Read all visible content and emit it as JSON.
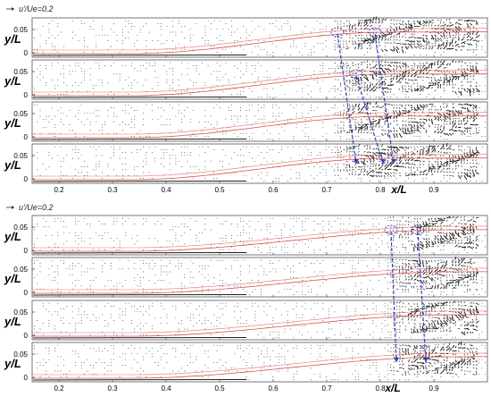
{
  "figure": {
    "groups": [
      {
        "legend": {
          "arrow": "->",
          "text": "u'/Ue=0.2"
        },
        "ylabel": "y/L",
        "xlabel": "x/L",
        "panels": 4,
        "yticks": [
          "0.05",
          "0"
        ],
        "xticks": [
          "0.2",
          "0.3",
          "0.4",
          "0.5",
          "0.6",
          "0.7",
          "0.8",
          "0.9"
        ]
      },
      {
        "legend": {
          "arrow": "->",
          "text": "u'/Ue=0.2"
        },
        "ylabel": "y/L",
        "xlabel": "x/L",
        "panels": 4,
        "yticks": [
          "0.05",
          "0"
        ],
        "xticks": [
          "0.2",
          "0.3",
          "0.4",
          "0.5",
          "0.6",
          "0.7",
          "0.8",
          "0.9"
        ]
      }
    ],
    "colors": {
      "vector": "#1a1a1a",
      "boundary_curve": "#d9534f",
      "tracking_arrow": "#2b3fd6",
      "frame": "#555555"
    }
  },
  "chart_data": {
    "type": "scatter",
    "title": "",
    "xlabel": "x/L",
    "ylabel": "y/L",
    "xlim": [
      0.15,
      1.0
    ],
    "ylim": [
      0,
      0.07
    ],
    "x_ticks": [
      0.2,
      0.3,
      0.4,
      0.5,
      0.6,
      0.7,
      0.8,
      0.9
    ],
    "y_ticks": [
      0,
      0.05
    ],
    "vector_scale_label": "u'/Ue=0.2",
    "series": []
  }
}
